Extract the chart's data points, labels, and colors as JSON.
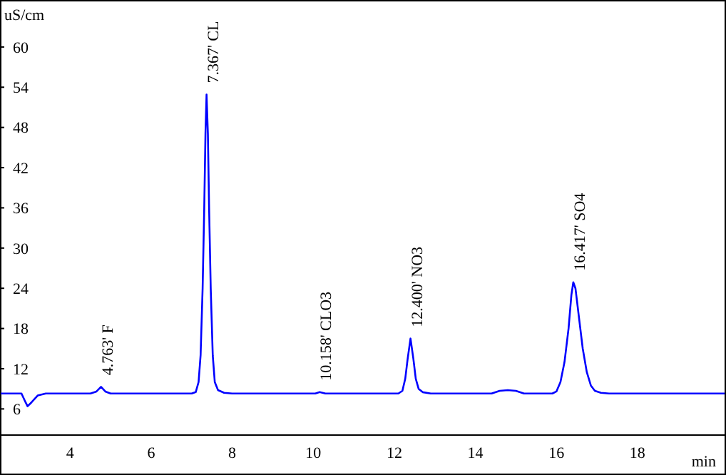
{
  "chart_data": {
    "type": "line",
    "xlabel": "min",
    "ylabel": "uS/cm",
    "x": [
      2.27,
      2.8,
      2.9,
      2.95,
      3.05,
      3.2,
      3.4,
      4.5,
      4.65,
      4.763,
      4.87,
      5.0,
      7.0,
      7.1,
      7.17,
      7.22,
      7.27,
      7.31,
      7.34,
      7.367,
      7.4,
      7.43,
      7.47,
      7.52,
      7.57,
      7.65,
      7.8,
      8.0,
      10.05,
      10.158,
      10.3,
      12.1,
      12.2,
      12.27,
      12.33,
      12.4,
      12.47,
      12.53,
      12.6,
      12.7,
      12.9,
      14.4,
      14.6,
      14.8,
      15.0,
      15.2,
      15.9,
      16.0,
      16.1,
      16.2,
      16.3,
      16.37,
      16.417,
      16.47,
      16.55,
      16.65,
      16.75,
      16.85,
      16.95,
      17.1,
      17.3,
      20.15
    ],
    "series": [
      {
        "color": "#0000ff",
        "values": [
          8.3,
          8.3,
          7.0,
          6.4,
          7.0,
          8.0,
          8.3,
          8.3,
          8.6,
          9.3,
          8.6,
          8.3,
          8.3,
          8.5,
          10,
          14,
          24,
          36,
          47,
          52.9,
          47,
          36,
          24,
          14,
          10,
          8.8,
          8.4,
          8.3,
          8.3,
          8.5,
          8.3,
          8.3,
          8.7,
          10.5,
          13.5,
          16.5,
          13.5,
          10.5,
          9,
          8.5,
          8.3,
          8.3,
          8.7,
          8.8,
          8.7,
          8.3,
          8.3,
          8.6,
          10,
          13,
          18,
          23,
          24.9,
          24,
          20,
          15,
          11.5,
          9.5,
          8.7,
          8.4,
          8.3,
          8.3
        ]
      }
    ],
    "xlim": [
      2.27,
      20.15
    ],
    "xticks": [
      4,
      6,
      8,
      10,
      12,
      14,
      16,
      18
    ],
    "ylim": [
      2.1,
      66.8
    ],
    "yticks": [
      6,
      12,
      18,
      24,
      30,
      36,
      42,
      48,
      54,
      60
    ],
    "grid": false,
    "marker": "none",
    "line_style": "solid",
    "annotations": [
      {
        "text": "4.763' F",
        "x": 4.763,
        "y": 9.3
      },
      {
        "text": "7.367' CL",
        "x": 7.367,
        "y": 52.9
      },
      {
        "text": "10.158' CLO3",
        "x": 10.158,
        "y": 8.5
      },
      {
        "text": "12.400' NO3",
        "x": 12.4,
        "y": 16.5
      },
      {
        "text": "16.417' SO4",
        "x": 16.417,
        "y": 24.9
      }
    ]
  }
}
